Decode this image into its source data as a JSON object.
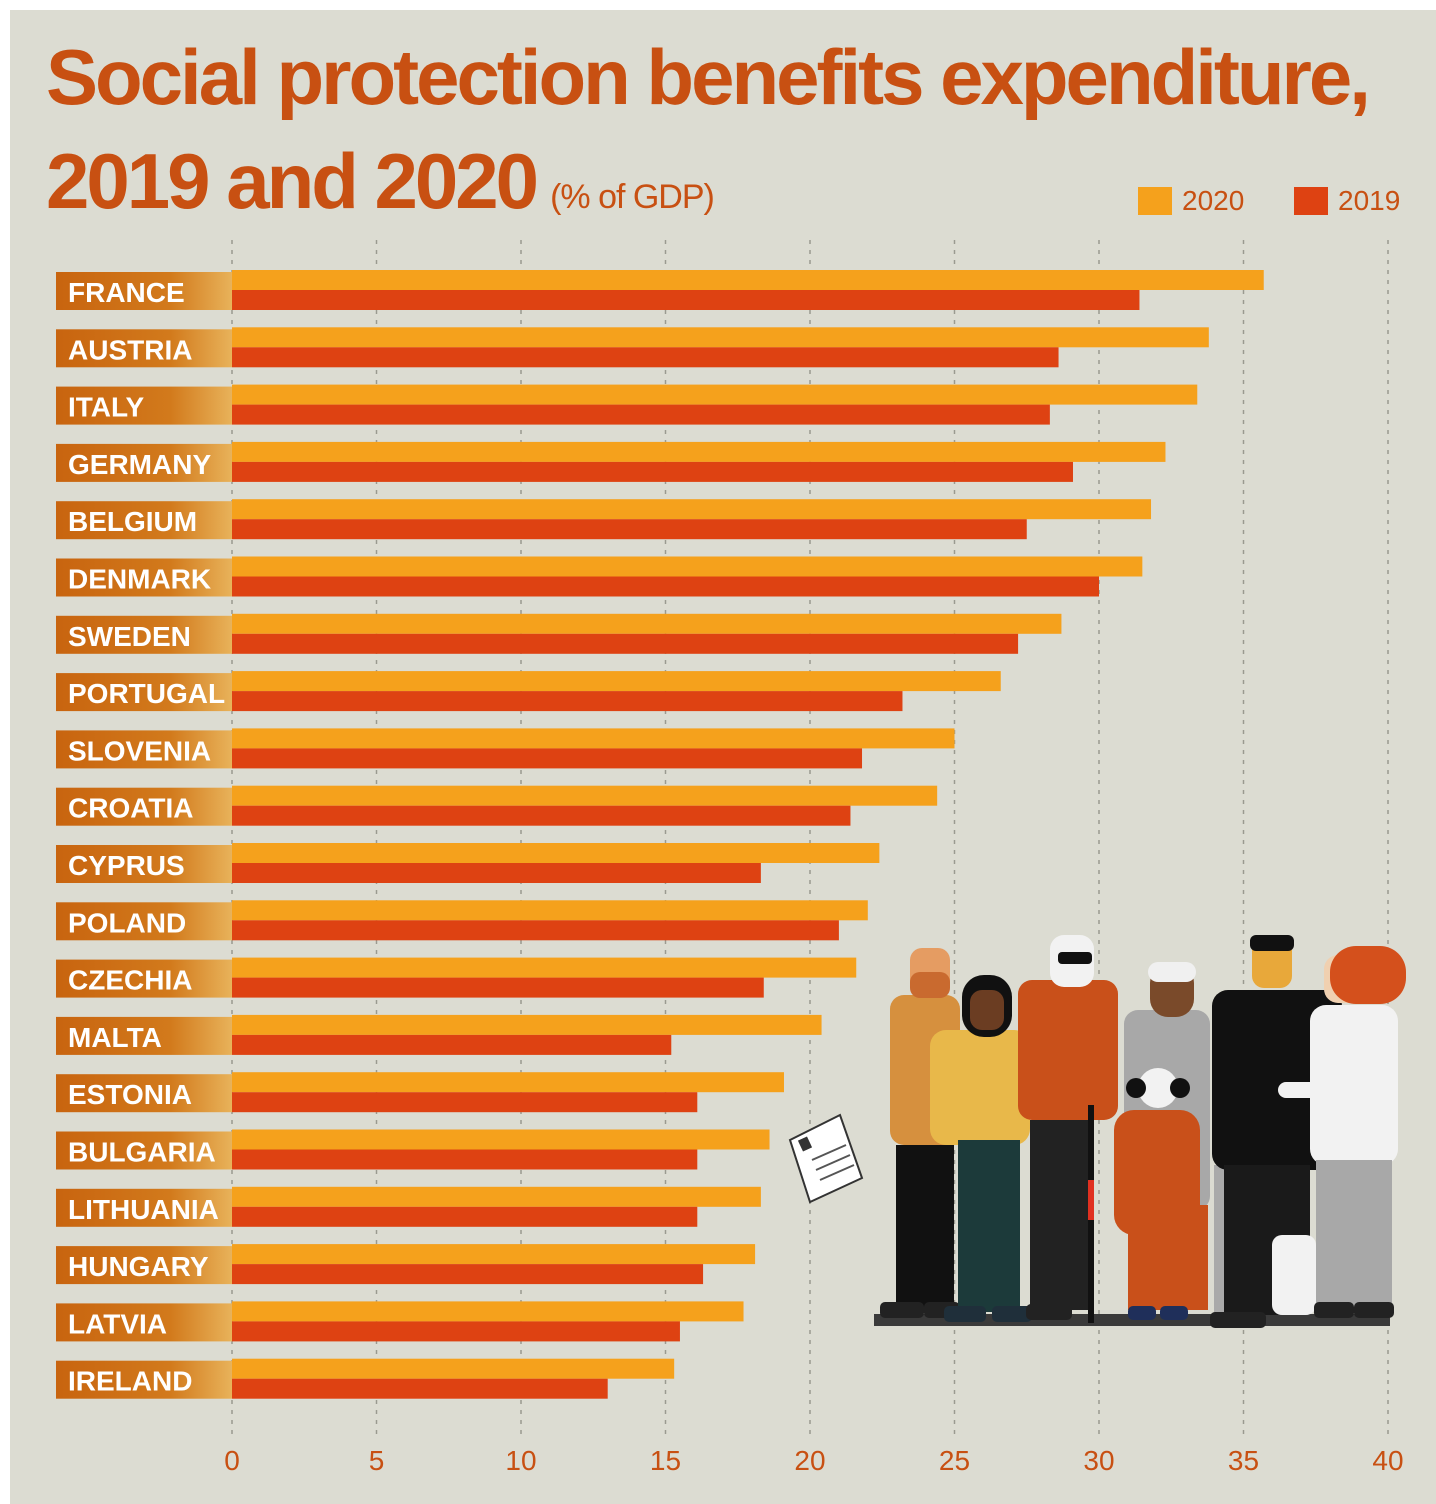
{
  "title_line_1": "Social protection benefits expenditure,",
  "title_line_2": "2019 and 2020",
  "subtitle": "(% of GDP)",
  "colors": {
    "background": "#dcdcd2",
    "title": "#c85012",
    "series_2020": "#f5a11c",
    "series_2019": "#de4212",
    "label_box": "#c8640f"
  },
  "chart_data": {
    "type": "bar",
    "orientation": "horizontal",
    "categories": [
      "FRANCE",
      "AUSTRIA",
      "ITALY",
      "GERMANY",
      "BELGIUM",
      "DENMARK",
      "SWEDEN",
      "PORTUGAL",
      "SLOVENIA",
      "CROATIA",
      "CYPRUS",
      "POLAND",
      "CZECHIA",
      "MALTA",
      "ESTONIA",
      "BULGARIA",
      "LITHUANIA",
      "HUNGARY",
      "LATVIA",
      "IRELAND"
    ],
    "series": [
      {
        "name": "2020",
        "color": "#f5a11c",
        "values": [
          35.7,
          33.8,
          33.4,
          32.3,
          31.8,
          31.5,
          28.7,
          26.6,
          25.0,
          24.4,
          22.4,
          22.0,
          21.6,
          20.4,
          19.1,
          18.6,
          18.3,
          18.1,
          17.7,
          15.3
        ]
      },
      {
        "name": "2019",
        "color": "#de4212",
        "values": [
          31.4,
          28.6,
          28.3,
          29.1,
          27.5,
          30.0,
          27.2,
          23.2,
          21.8,
          21.4,
          18.3,
          21.0,
          18.4,
          15.2,
          16.1,
          16.1,
          16.1,
          16.3,
          15.5,
          13.0
        ]
      }
    ],
    "xlim": [
      0,
      40
    ],
    "xticks": [
      0,
      5,
      10,
      15,
      20,
      25,
      30,
      35,
      40
    ],
    "grid": "vertical dotted",
    "legend": "top-right"
  }
}
